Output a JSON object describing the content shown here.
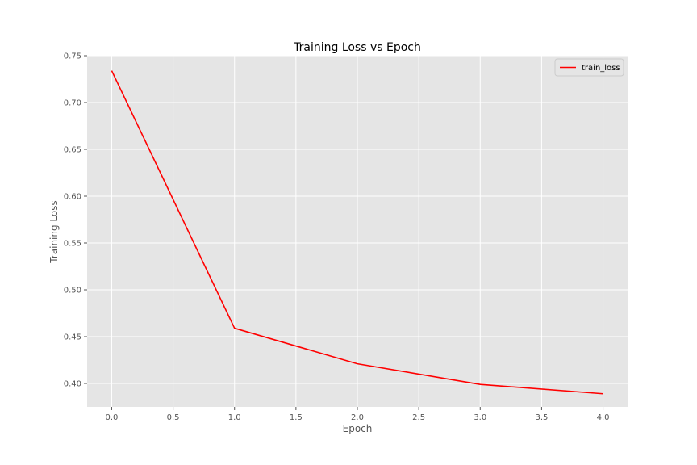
{
  "chart_data": {
    "type": "line",
    "title": "Training Loss vs Epoch",
    "xlabel": "Epoch",
    "ylabel": "Training Loss",
    "xlim": [
      -0.2,
      4.2
    ],
    "ylim": [
      0.375,
      0.75
    ],
    "xticks": [
      "0.0",
      "0.5",
      "1.0",
      "1.5",
      "2.0",
      "2.5",
      "3.0",
      "3.5",
      "4.0"
    ],
    "yticks": [
      "0.40",
      "0.45",
      "0.50",
      "0.55",
      "0.60",
      "0.65",
      "0.70",
      "0.75"
    ],
    "grid": true,
    "legend_position": "top-right",
    "series": [
      {
        "name": "train_loss",
        "color": "#ff0000",
        "x": [
          0,
          1,
          2,
          3,
          4
        ],
        "y": [
          0.734,
          0.459,
          0.421,
          0.399,
          0.389
        ]
      }
    ]
  },
  "colors": {
    "plot_background": "#e5e5e5",
    "grid": "#ffffff"
  }
}
